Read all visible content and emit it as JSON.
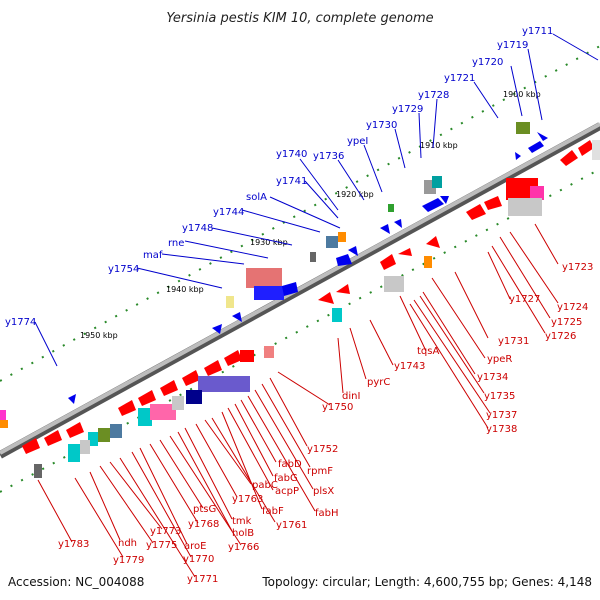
{
  "title": "Yersinia pestis KIM 10, complete genome",
  "footer": {
    "accession": "Accession: NC_004088",
    "stats": "Topology: circular; Length: 4,600,755 bp; Genes: 4,148"
  },
  "colors": {
    "top_label": "#0000cc",
    "bottom_label": "#cc0000",
    "backbone": "#888888",
    "tick": "#2a8a2a"
  },
  "scale_ticks": [
    "1900 kbp",
    "1910 kbp",
    "1920 kbp",
    "1930 kbp",
    "1940 kbp",
    "1950 kbp"
  ],
  "top_genes": [
    "y1711",
    "y1719",
    "y1720",
    "y1721",
    "y1728",
    "y1729",
    "y1730",
    "ypeI",
    "y1736",
    "y1740",
    "y1741",
    "solA",
    "y1744",
    "y1748",
    "rne",
    "maf",
    "y1754",
    "y1774"
  ],
  "bottom_genes": [
    "y1723",
    "y1724",
    "y1725",
    "y1726",
    "y1727",
    "y1731",
    "ypeR",
    "tqsA",
    "y1734",
    "y1735",
    "y1737",
    "y1738",
    "y1743",
    "pyrC",
    "dinI",
    "y1750",
    "y1752",
    "rpmF",
    "plsX",
    "fabH",
    "fabD",
    "fabG",
    "acpP",
    "fabF",
    "y1761",
    "pabC",
    "y1763",
    "tmk",
    "holB",
    "y1766",
    "ptsG",
    "y1768",
    "aroE",
    "y1770",
    "y1771",
    "y1773",
    "y1775",
    "ndh",
    "y1779",
    "y1783"
  ]
}
